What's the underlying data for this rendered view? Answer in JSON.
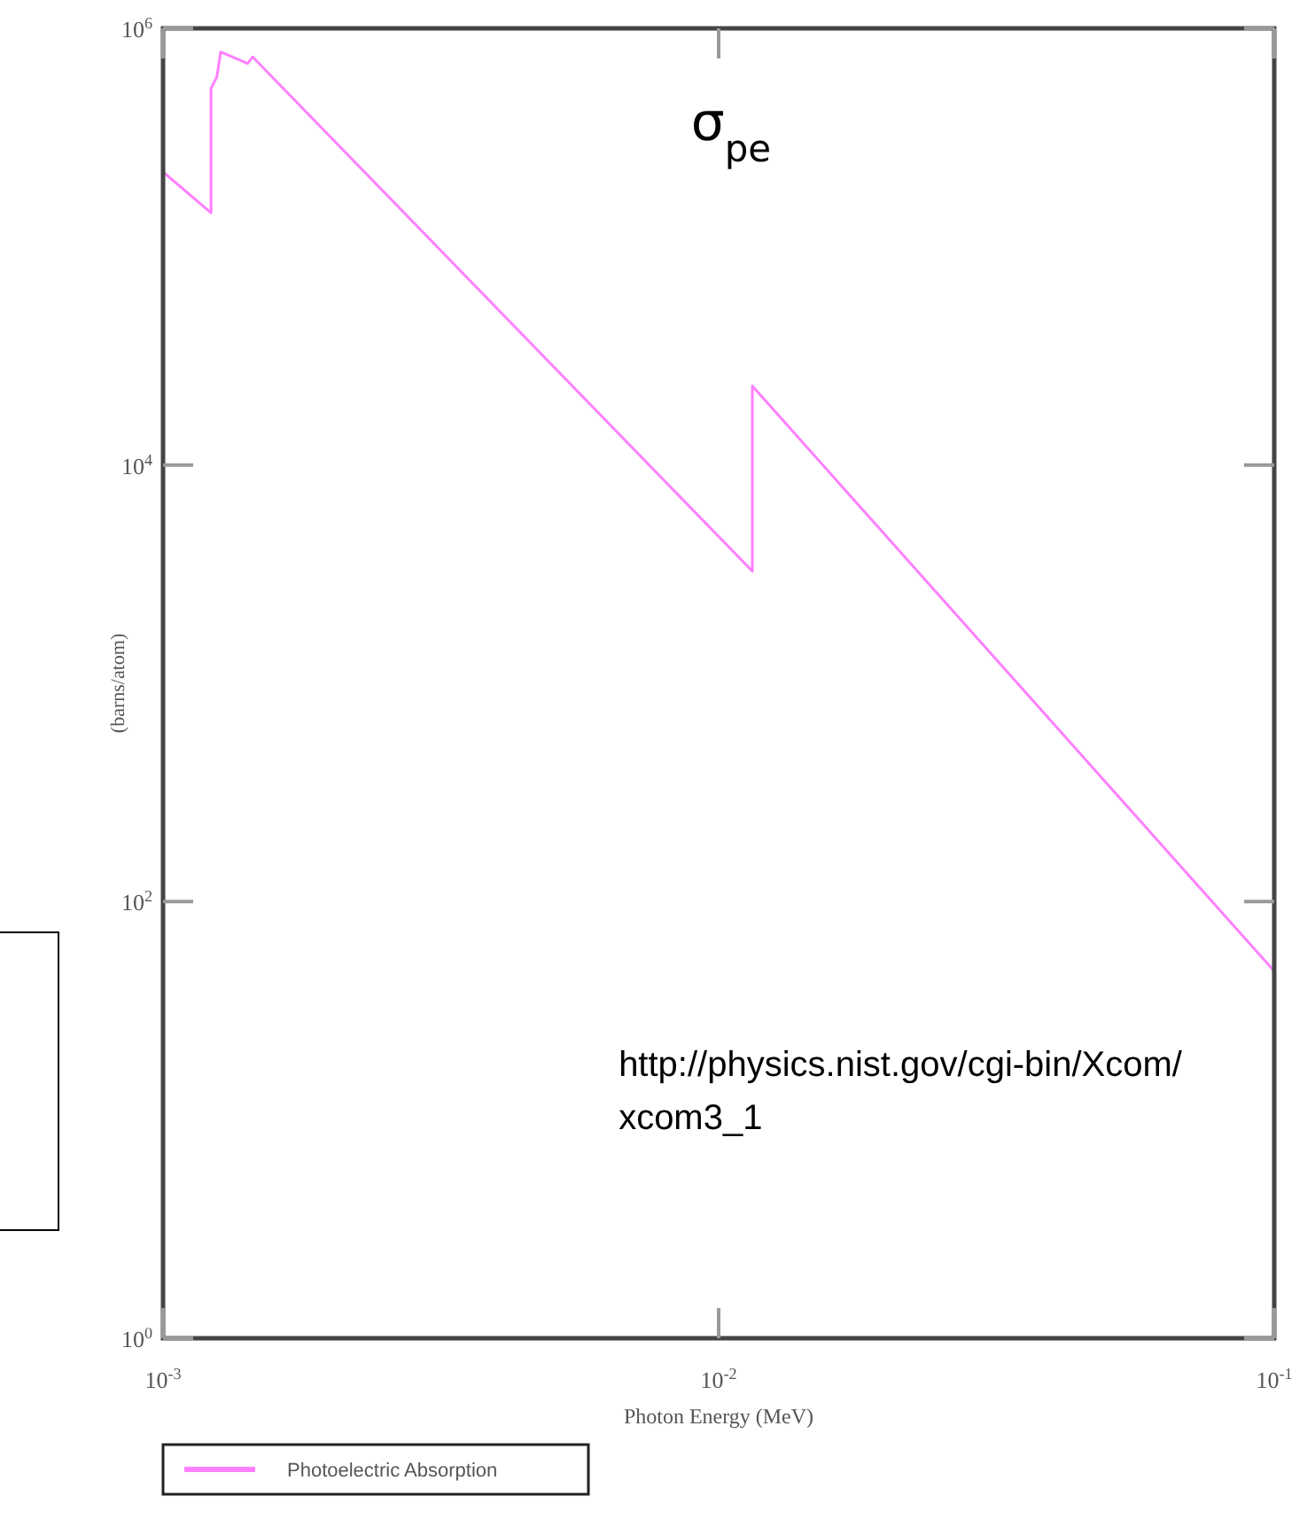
{
  "chart_data": {
    "type": "line",
    "xlabel": "Photon Energy (MeV)",
    "ylabel": "(barns/atom)",
    "log": "xy",
    "grid": false,
    "legend": "bottom left",
    "marker": "none",
    "line_style": "solid",
    "xlim": [
      0.001,
      0.1
    ],
    "ylim": [
      1,
      1000000
    ],
    "xticks": [
      {
        "value": 0.001,
        "label": "10$^{-3}$"
      },
      {
        "value": 0.01,
        "label": "10$^{-2}$"
      },
      {
        "value": 0.1,
        "label": "10$^{-1}$"
      }
    ],
    "yticks": [
      {
        "value": 1,
        "label": "10$^{0}$"
      },
      {
        "value": 100,
        "label": "10$^{2}$"
      },
      {
        "value": 10000,
        "label": "10$^{4}$"
      },
      {
        "value": 1000000,
        "label": "10$^{6}$"
      }
    ],
    "x": [
      0.001,
      0.00122,
      0.00122,
      0.00125,
      0.00127,
      0.00142,
      0.00145,
      0.0115,
      0.0115,
      0.1
    ],
    "series": [
      {
        "name": "Photoelectric Absorption",
        "color": "#ff80ff",
        "values": [
          220000,
          143000,
          530000,
          600000,
          780000,
          690000,
          740000,
          3260,
          23000,
          48
        ]
      }
    ],
    "annotations": [
      "σ$_{pe}$",
      "http://physics.nist.gov/cgi-bin/Xcom/ xcom3_1"
    ]
  }
}
